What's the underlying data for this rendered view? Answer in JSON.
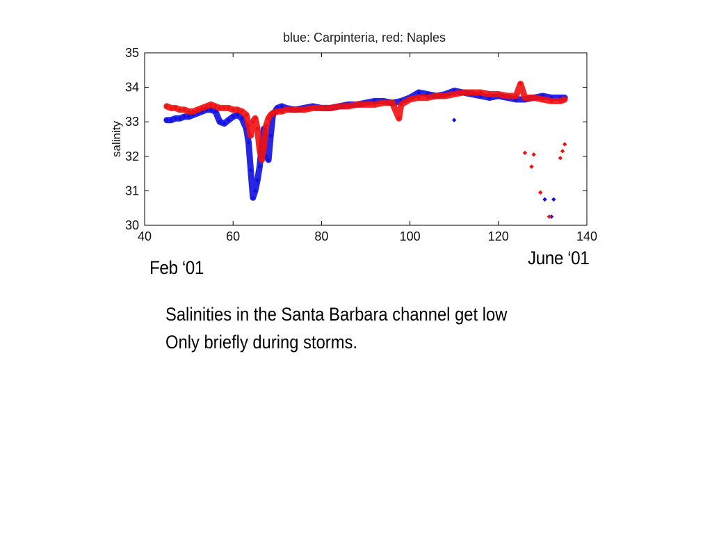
{
  "slide": {
    "label_start": "Feb ‘01",
    "label_end": "June ‘01",
    "caption_line1": "Salinities in the Santa Barbara channel get low",
    "caption_line2": "Only briefly during storms."
  },
  "chart_data": {
    "type": "scatter",
    "title": "blue: Carpinteria, red: Naples",
    "xlabel": "",
    "ylabel": "salinity",
    "xlim": [
      40,
      140
    ],
    "ylim": [
      30,
      35
    ],
    "xticks": [
      40,
      60,
      80,
      100,
      120,
      140
    ],
    "yticks": [
      30,
      31,
      32,
      33,
      34,
      35
    ],
    "grid": false,
    "colors": {
      "Carpinteria": "#1010e0",
      "Naples": "#ee1111"
    },
    "series": [
      {
        "name": "Carpinteria",
        "color": "#1010e0",
        "x": [
          45,
          46,
          47,
          48,
          49,
          50,
          51,
          52,
          53,
          54,
          55,
          56,
          57,
          58,
          59,
          60,
          61,
          62,
          63,
          63.5,
          64,
          64.5,
          65,
          65.5,
          66,
          66.5,
          67,
          67.5,
          68,
          68.5,
          69,
          70,
          71,
          72,
          74,
          76,
          78,
          80,
          82,
          84,
          86,
          88,
          90,
          92,
          94,
          96,
          98,
          100,
          102,
          104,
          106,
          108,
          110,
          112,
          114,
          116,
          118,
          120,
          122,
          124,
          126,
          128,
          130,
          132,
          134,
          135,
          110,
          130.5,
          132.5,
          132
        ],
        "y": [
          33.05,
          33.05,
          33.1,
          33.1,
          33.15,
          33.15,
          33.2,
          33.25,
          33.3,
          33.35,
          33.35,
          33.3,
          33.0,
          32.95,
          33.05,
          33.15,
          33.2,
          33.1,
          32.8,
          32.4,
          31.6,
          30.8,
          31.0,
          31.3,
          31.7,
          32.3,
          32.8,
          32.0,
          31.9,
          32.6,
          33.2,
          33.4,
          33.45,
          33.4,
          33.35,
          33.4,
          33.45,
          33.4,
          33.4,
          33.45,
          33.5,
          33.5,
          33.55,
          33.6,
          33.6,
          33.55,
          33.6,
          33.7,
          33.85,
          33.8,
          33.75,
          33.8,
          33.9,
          33.85,
          33.8,
          33.75,
          33.7,
          33.75,
          33.7,
          33.65,
          33.65,
          33.7,
          33.75,
          33.7,
          33.7,
          33.7,
          33.05,
          30.75,
          30.75,
          30.25
        ]
      },
      {
        "name": "Naples",
        "color": "#ee1111",
        "x": [
          45,
          46,
          47,
          48,
          49,
          50,
          51,
          52,
          53,
          54,
          55,
          56,
          57,
          58,
          59,
          60,
          61,
          62,
          63,
          63.5,
          64,
          64.5,
          65,
          65.5,
          66,
          66.5,
          67,
          67.5,
          68,
          68.5,
          69,
          70,
          71,
          72,
          74,
          76,
          78,
          80,
          82,
          84,
          86,
          88,
          90,
          92,
          94,
          96,
          97.5,
          98,
          100,
          102,
          104,
          106,
          108,
          110,
          112,
          114,
          116,
          118,
          120,
          122,
          124,
          125,
          126,
          128,
          130,
          132,
          134,
          135,
          126,
          127.5,
          128,
          129.5,
          131.5,
          134,
          134.5,
          135
        ],
        "y": [
          33.45,
          33.4,
          33.4,
          33.35,
          33.35,
          33.3,
          33.3,
          33.35,
          33.4,
          33.45,
          33.5,
          33.45,
          33.4,
          33.4,
          33.4,
          33.35,
          33.35,
          33.3,
          33.2,
          32.9,
          32.6,
          33.0,
          33.1,
          32.8,
          32.2,
          31.9,
          32.3,
          32.9,
          33.1,
          33.2,
          33.25,
          33.3,
          33.3,
          33.35,
          33.35,
          33.35,
          33.4,
          33.4,
          33.4,
          33.45,
          33.45,
          33.5,
          33.5,
          33.5,
          33.55,
          33.55,
          33.1,
          33.5,
          33.65,
          33.7,
          33.7,
          33.75,
          33.75,
          33.8,
          33.85,
          33.85,
          33.85,
          33.8,
          33.8,
          33.75,
          33.75,
          34.1,
          33.7,
          33.7,
          33.65,
          33.6,
          33.6,
          33.65,
          32.1,
          31.7,
          32.05,
          30.95,
          30.25,
          31.95,
          32.15,
          32.35
        ]
      }
    ]
  }
}
